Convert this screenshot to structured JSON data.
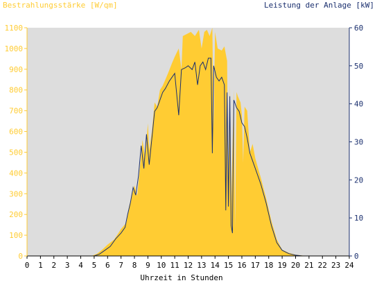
{
  "chart_data": {
    "type": "area",
    "title_left": "Bestrahlungsstärke [W/qm]",
    "title_right": "Leistung der Anlage [kW]",
    "xlabel": "Uhrzeit in Stunden",
    "x_ticks": [
      0,
      1,
      2,
      3,
      4,
      5,
      6,
      7,
      8,
      9,
      10,
      11,
      12,
      13,
      14,
      15,
      16,
      17,
      18,
      19,
      20,
      21,
      22,
      23,
      24
    ],
    "xlim": [
      0,
      24
    ],
    "y_left": {
      "ticks": [
        0,
        100,
        200,
        300,
        400,
        500,
        600,
        700,
        800,
        900,
        1000,
        1100
      ],
      "lim": [
        0,
        1100
      ]
    },
    "y_right": {
      "ticks": [
        0,
        10,
        20,
        30,
        40,
        50,
        60
      ],
      "lim": [
        0,
        60
      ]
    },
    "colors": {
      "irradiance": "#ffcc33",
      "power": "#1a2f6e",
      "plot_bg": "#dddddd",
      "left_axis_text": "#ffcc33",
      "right_axis_text": "#1a2f6e"
    },
    "series": [
      {
        "key": "irradiance",
        "axis": "left",
        "style": "area",
        "points": [
          [
            0,
            0
          ],
          [
            4.8,
            0
          ],
          [
            5.2,
            10
          ],
          [
            5.6,
            30
          ],
          [
            6.0,
            55
          ],
          [
            6.5,
            80
          ],
          [
            6.8,
            110
          ],
          [
            7.0,
            130
          ],
          [
            7.4,
            160
          ],
          [
            7.6,
            240
          ],
          [
            7.8,
            290
          ],
          [
            8.0,
            340
          ],
          [
            8.2,
            290
          ],
          [
            8.4,
            420
          ],
          [
            8.6,
            560
          ],
          [
            8.8,
            470
          ],
          [
            9.0,
            640
          ],
          [
            9.1,
            510
          ],
          [
            9.3,
            600
          ],
          [
            9.5,
            740
          ],
          [
            9.7,
            720
          ],
          [
            9.9,
            800
          ],
          [
            10.1,
            820
          ],
          [
            10.3,
            850
          ],
          [
            10.5,
            880
          ],
          [
            10.8,
            930
          ],
          [
            11.0,
            960
          ],
          [
            11.3,
            1000
          ],
          [
            11.5,
            900
          ],
          [
            11.6,
            1060
          ],
          [
            11.9,
            1070
          ],
          [
            12.2,
            1080
          ],
          [
            12.5,
            1060
          ],
          [
            12.8,
            1090
          ],
          [
            13.0,
            1000
          ],
          [
            13.2,
            1080
          ],
          [
            13.4,
            1090
          ],
          [
            13.6,
            1060
          ],
          [
            13.8,
            1100
          ],
          [
            13.9,
            620
          ],
          [
            14.0,
            1080
          ],
          [
            14.2,
            1000
          ],
          [
            14.5,
            990
          ],
          [
            14.7,
            1010
          ],
          [
            14.9,
            940
          ],
          [
            15.0,
            250
          ],
          [
            15.1,
            820
          ],
          [
            15.2,
            230
          ],
          [
            15.4,
            800
          ],
          [
            15.5,
            130
          ],
          [
            15.6,
            790
          ],
          [
            15.7,
            770
          ],
          [
            15.9,
            740
          ],
          [
            16.0,
            680
          ],
          [
            16.1,
            450
          ],
          [
            16.2,
            720
          ],
          [
            16.4,
            700
          ],
          [
            16.6,
            500
          ],
          [
            16.8,
            540
          ],
          [
            17.0,
            470
          ],
          [
            17.4,
            380
          ],
          [
            17.8,
            280
          ],
          [
            18.2,
            170
          ],
          [
            18.6,
            80
          ],
          [
            19.0,
            30
          ],
          [
            19.5,
            15
          ],
          [
            20.0,
            6
          ],
          [
            20.5,
            2
          ],
          [
            21.0,
            0
          ],
          [
            24,
            0
          ]
        ]
      },
      {
        "key": "power",
        "axis": "right",
        "style": "line",
        "points": [
          [
            0,
            0
          ],
          [
            5.0,
            0
          ],
          [
            5.4,
            0.5
          ],
          [
            5.8,
            1.5
          ],
          [
            6.2,
            2.5
          ],
          [
            6.6,
            4.5
          ],
          [
            7.0,
            6.0
          ],
          [
            7.3,
            7.5
          ],
          [
            7.5,
            11
          ],
          [
            7.7,
            14
          ],
          [
            7.9,
            18
          ],
          [
            8.1,
            16
          ],
          [
            8.3,
            21
          ],
          [
            8.5,
            29
          ],
          [
            8.7,
            23
          ],
          [
            8.9,
            32
          ],
          [
            9.1,
            24
          ],
          [
            9.3,
            31
          ],
          [
            9.5,
            38
          ],
          [
            9.7,
            39
          ],
          [
            9.9,
            41
          ],
          [
            10.1,
            43
          ],
          [
            10.3,
            44
          ],
          [
            10.6,
            46
          ],
          [
            11.0,
            48
          ],
          [
            11.3,
            37
          ],
          [
            11.5,
            49
          ],
          [
            11.8,
            49.5
          ],
          [
            12.0,
            50
          ],
          [
            12.3,
            49
          ],
          [
            12.5,
            51
          ],
          [
            12.7,
            45
          ],
          [
            12.9,
            50
          ],
          [
            13.1,
            51
          ],
          [
            13.3,
            49
          ],
          [
            13.5,
            52
          ],
          [
            13.7,
            52
          ],
          [
            13.8,
            27
          ],
          [
            13.9,
            50
          ],
          [
            14.1,
            47
          ],
          [
            14.3,
            46
          ],
          [
            14.5,
            47
          ],
          [
            14.7,
            45
          ],
          [
            14.8,
            12
          ],
          [
            14.9,
            43
          ],
          [
            15.0,
            13
          ],
          [
            15.1,
            42
          ],
          [
            15.2,
            8
          ],
          [
            15.3,
            6
          ],
          [
            15.4,
            41
          ],
          [
            15.6,
            39
          ],
          [
            15.8,
            38
          ],
          [
            16.0,
            35
          ],
          [
            16.2,
            34
          ],
          [
            16.4,
            31
          ],
          [
            16.6,
            27
          ],
          [
            16.8,
            25
          ],
          [
            17.0,
            23
          ],
          [
            17.4,
            19
          ],
          [
            17.8,
            14
          ],
          [
            18.2,
            8
          ],
          [
            18.6,
            3.5
          ],
          [
            19.0,
            1.5
          ],
          [
            19.5,
            0.6
          ],
          [
            20.0,
            0.2
          ],
          [
            20.5,
            0
          ],
          [
            24,
            0
          ]
        ]
      }
    ]
  }
}
